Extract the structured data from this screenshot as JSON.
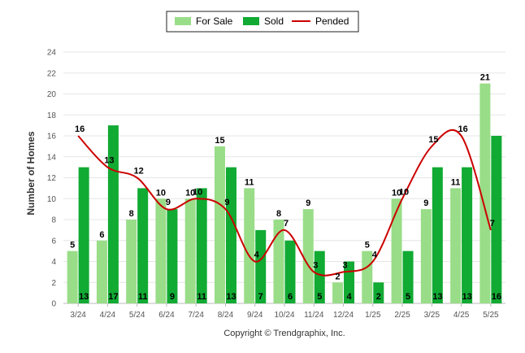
{
  "chart_data": {
    "type": "bar",
    "ylabel": "Number of Homes",
    "ylim": [
      0,
      24
    ],
    "yticks": [
      0,
      2,
      4,
      6,
      8,
      10,
      12,
      14,
      16,
      18,
      20,
      22,
      24
    ],
    "grid": true,
    "legend_position": "top-center",
    "categories": [
      "3/24",
      "4/24",
      "5/24",
      "6/24",
      "7/24",
      "8/24",
      "9/24",
      "10/24",
      "11/24",
      "12/24",
      "1/25",
      "2/25",
      "3/25",
      "4/25",
      "5/25"
    ],
    "series": [
      {
        "name": "For Sale",
        "kind": "bar",
        "color": "#99dd88",
        "values": [
          5,
          6,
          8,
          10,
          10,
          15,
          11,
          8,
          9,
          2,
          5,
          10,
          9,
          11,
          21
        ]
      },
      {
        "name": "Sold",
        "kind": "bar",
        "color": "#11aa33",
        "values": [
          13,
          17,
          11,
          9,
          11,
          13,
          7,
          6,
          5,
          4,
          2,
          5,
          13,
          13,
          16
        ]
      },
      {
        "name": "Pended",
        "kind": "line",
        "color": "#cc0000",
        "values": [
          16,
          13,
          12,
          9,
          10,
          9,
          4,
          7,
          3,
          3,
          4,
          10,
          15,
          16,
          7
        ]
      }
    ]
  },
  "copyright": "Copyright © Trendgraphix, Inc."
}
